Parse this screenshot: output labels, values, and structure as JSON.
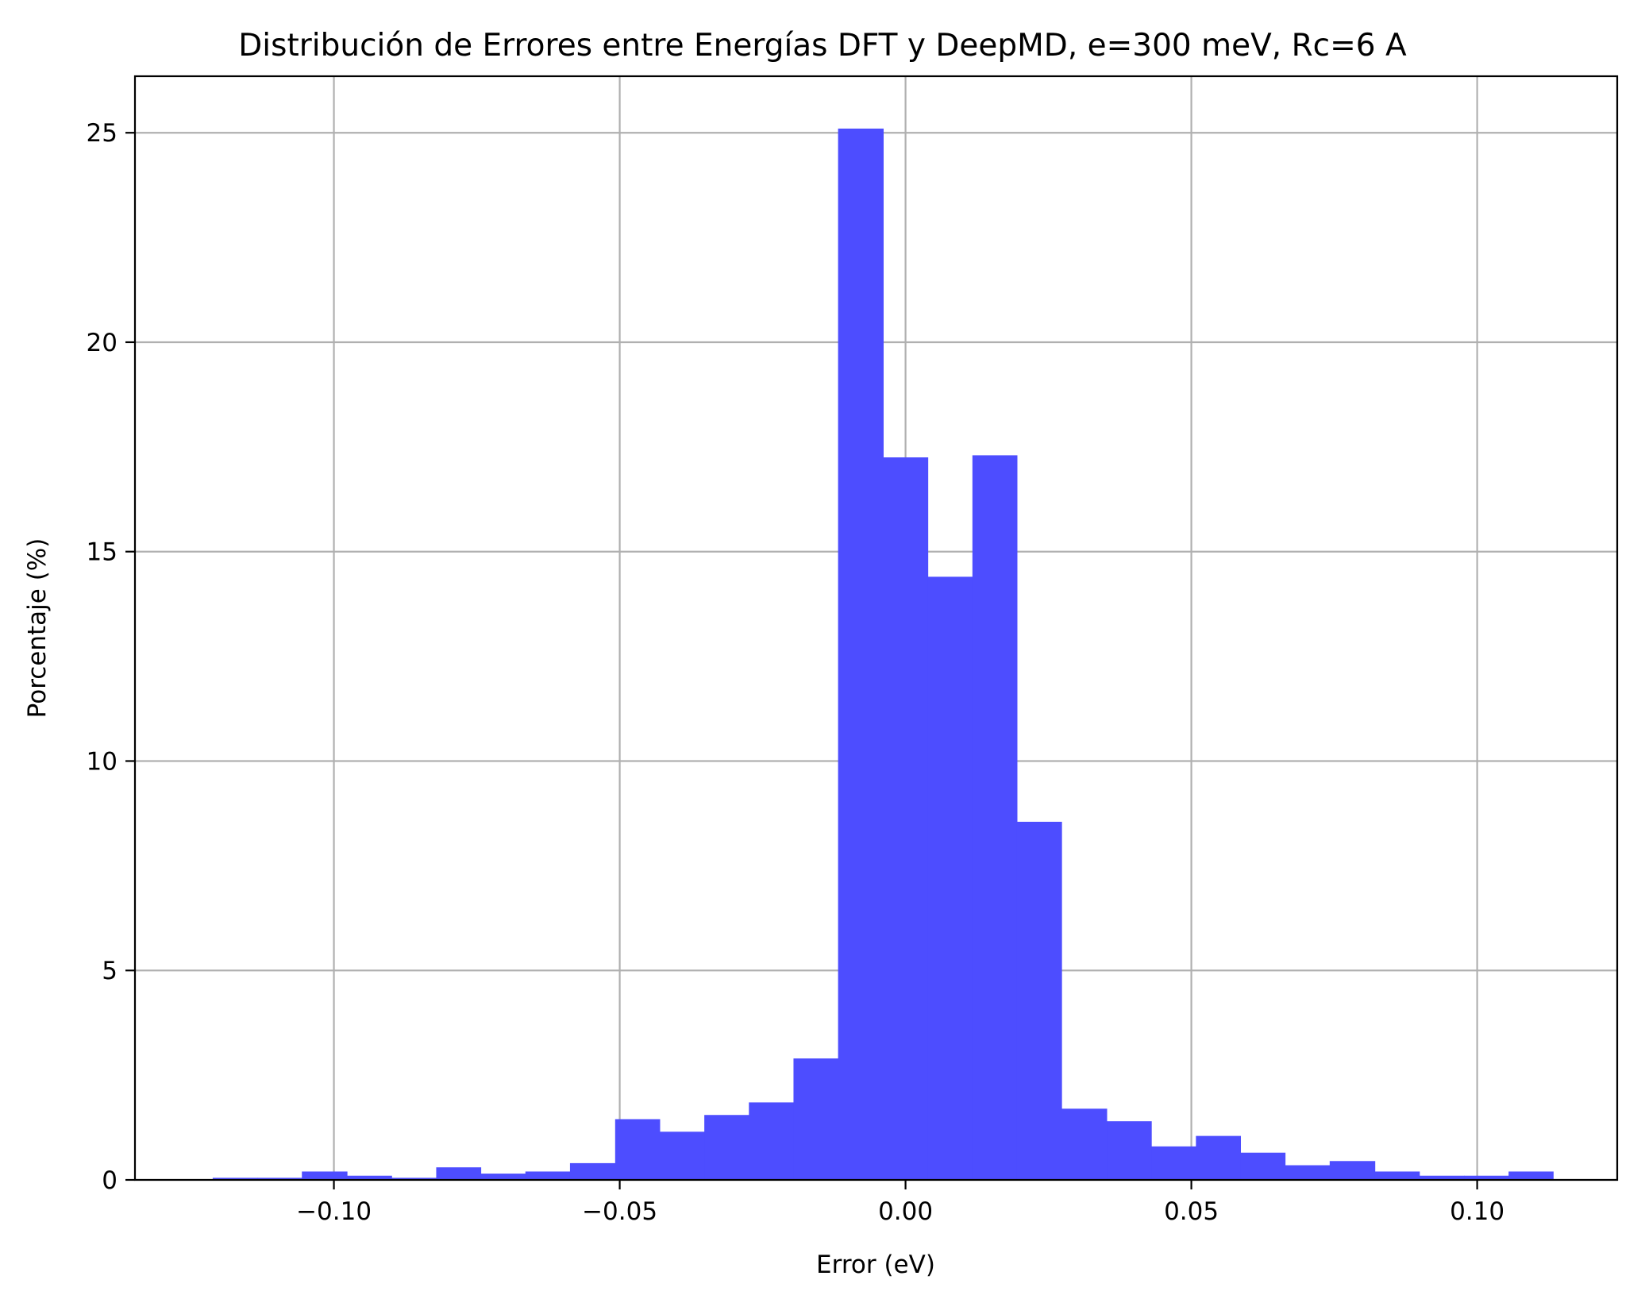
{
  "chart_data": {
    "type": "bar",
    "title": "Distribución de Errores entre Energías DFT y DeepMD, e=300 meV, Rc=6 A",
    "xlabel": "Error (eV)",
    "ylabel": "Porcentaje (%)",
    "xlim": [
      -0.1348,
      0.1245
    ],
    "ylim": [
      0,
      26.35
    ],
    "grid": true,
    "bar_color": "#4d4dff",
    "x_ticks": [
      -0.1,
      -0.05,
      0.0,
      0.05,
      0.1
    ],
    "x_tick_labels": [
      "−0.10",
      "−0.05",
      "0.00",
      "0.05",
      "0.10"
    ],
    "y_ticks": [
      0,
      5,
      10,
      15,
      20,
      25
    ],
    "y_tick_labels": [
      "0",
      "5",
      "10",
      "15",
      "20",
      "25"
    ],
    "bin_edges": [
      -0.1212,
      -0.1134,
      -0.1056,
      -0.0977,
      -0.0899,
      -0.0821,
      -0.0743,
      -0.0665,
      -0.0587,
      -0.0508,
      -0.043,
      -0.0352,
      -0.0274,
      -0.0196,
      -0.0118,
      -0.0039,
      0.0039,
      0.0117,
      0.0195,
      0.0273,
      0.0352,
      0.043,
      0.0508,
      0.0586,
      0.0664,
      0.0742,
      0.0821,
      0.0899,
      0.0977,
      0.1055,
      0.1133
    ],
    "values": [
      0.05,
      0.05,
      0.2,
      0.1,
      0.05,
      0.3,
      0.15,
      0.2,
      0.4,
      1.45,
      1.15,
      1.55,
      1.85,
      2.9,
      25.1,
      17.25,
      14.4,
      17.3,
      8.55,
      1.7,
      1.4,
      0.8,
      1.05,
      0.65,
      0.35,
      0.45,
      0.2,
      0.1,
      0.1,
      0.2
    ]
  }
}
